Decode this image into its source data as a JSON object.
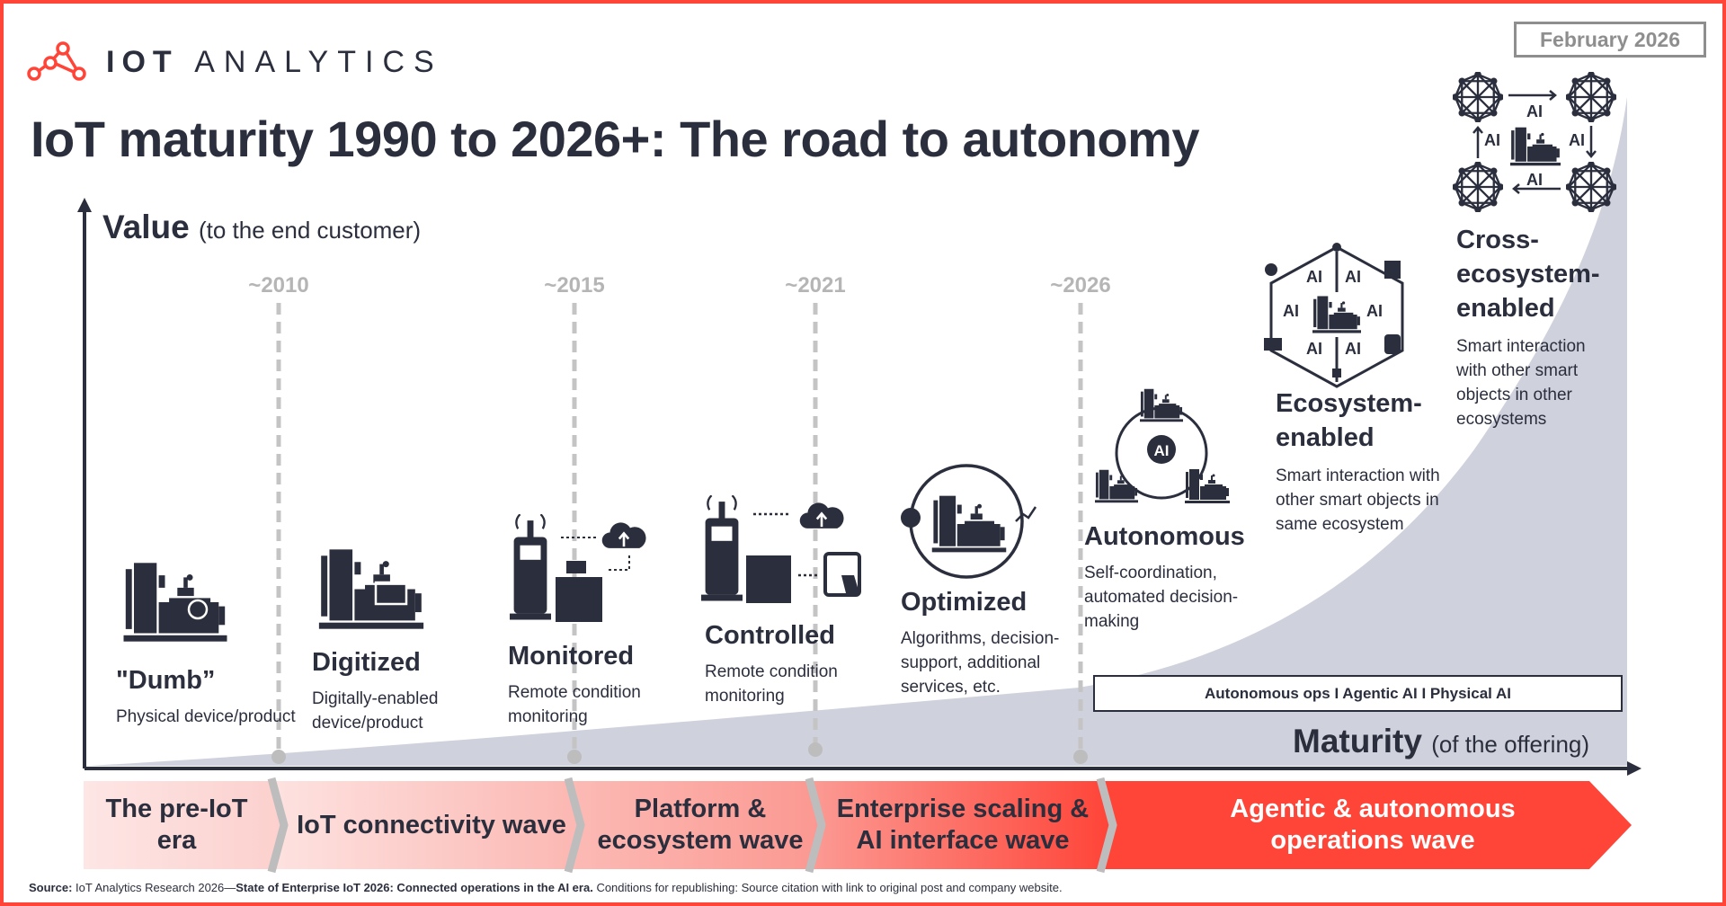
{
  "logo": {
    "brand_bold": "IOT",
    "brand_light": "ANALYTICS"
  },
  "date_badge": "February 2026",
  "title": "IoT maturity 1990 to 2026+: The road to autonomy",
  "axes": {
    "y_label": "Value",
    "y_label_note": "(to the end customer)",
    "x_label": "Maturity",
    "x_label_note": "(of the offering)"
  },
  "milestones": [
    "~2010",
    "~2015",
    "~2021",
    "~2026"
  ],
  "stages": [
    {
      "title": "\"Dumb”",
      "desc": [
        "Physical device/product"
      ],
      "icon": "machine-icon"
    },
    {
      "title": "Digitized",
      "desc": [
        "Digitally-enabled",
        "device/product"
      ],
      "icon": "digital-machine-icon"
    },
    {
      "title": "Monitored",
      "desc": [
        "Remote condition",
        "monitoring"
      ],
      "icon": "monitored-machine-cloud-icon"
    },
    {
      "title": "Controlled",
      "desc": [
        "Remote condition",
        "monitoring"
      ],
      "icon": "controlled-machine-tablet-icon"
    },
    {
      "title": "Optimized",
      "desc": [
        "Algorithms, decision-",
        "support, additional",
        "services, etc."
      ],
      "icon": "optimization-cycle-icon"
    },
    {
      "title": "Autonomous",
      "desc": [
        "Self-coordination,",
        "automated decision-",
        "making"
      ],
      "icon": "ai-autonomous-machines-icon"
    },
    {
      "title": [
        "Ecosystem-",
        "enabled"
      ],
      "desc": [
        "Smart interaction with",
        "other smart objects in",
        "same ecosystem"
      ],
      "icon": "ai-ecosystem-hexagon-icon"
    },
    {
      "title": [
        "Cross-",
        "ecosystem-",
        "enabled"
      ],
      "desc": [
        "Smart interaction",
        "with other smart",
        "objects in other",
        "ecosystems"
      ],
      "icon": "cross-ecosystem-network-icon"
    }
  ],
  "ai_label": "AI",
  "autonomous_box": "Autonomous ops I Agentic AI I Physical AI",
  "waves": [
    {
      "label": [
        "The pre-IoT",
        "era"
      ]
    },
    {
      "label": [
        "IoT connectivity wave"
      ]
    },
    {
      "label": [
        "Platform &",
        "ecosystem wave"
      ]
    },
    {
      "label": [
        "Enterprise scaling &",
        "AI interface wave"
      ]
    },
    {
      "label": [
        "Agentic & autonomous",
        "operations wave"
      ]
    }
  ],
  "source": {
    "label": "Source:",
    "text_1": " IoT Analytics Research 2026—",
    "bold": "State of Enterprise IoT 2026: Connected operations in the AI era.",
    "text_2": " Conditions for republishing: Source citation with link to original post and company website."
  },
  "colors": {
    "accent": "#ff4438",
    "dark": "#2b2e3d",
    "curve_fill": "#cfd1dc",
    "milestone_gray": "#b5b5b5"
  }
}
